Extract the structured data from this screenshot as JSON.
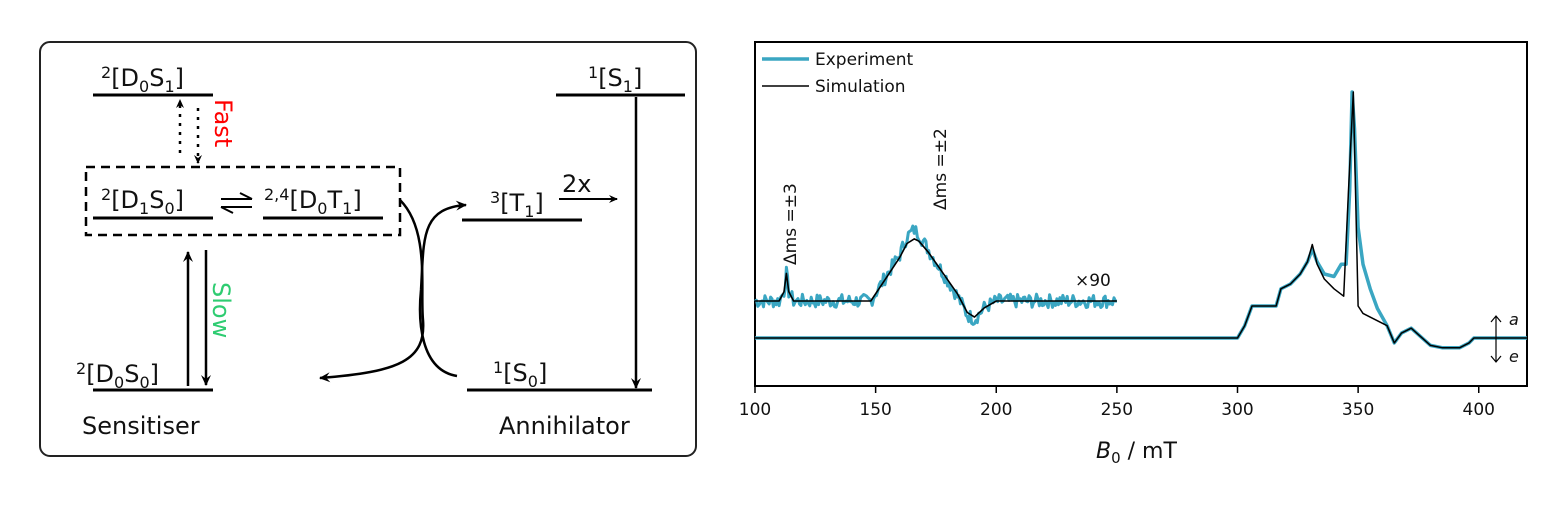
{
  "diagram": {
    "levels": {
      "d0s1": {
        "sup": "2",
        "main": "[D",
        "s1": "0",
        "m2": "S",
        "s2": "1",
        "end": "]"
      },
      "d1s0": {
        "sup": "2",
        "main": "[D",
        "s1": "1",
        "m2": "S",
        "s2": "0",
        "end": "]"
      },
      "d0t1": {
        "sup": "2,4",
        "main": "[D",
        "s1": "0",
        "m2": "T",
        "s2": "1",
        "end": "]"
      },
      "d0s0": {
        "sup": "2",
        "main": "[D",
        "s1": "0",
        "m2": "S",
        "s2": "0",
        "end": "]"
      },
      "s1": {
        "sup": "1",
        "main": "[S",
        "s1": "1",
        "end": "]"
      },
      "t1": {
        "sup": "3",
        "main": "[T",
        "s1": "1",
        "end": "]"
      },
      "s0": {
        "sup": "1",
        "main": "[S",
        "s1": "0",
        "end": "]"
      }
    },
    "fast_label": "Fast",
    "slow_label": "Slow",
    "two_x_label": "2x",
    "sensitiser_label": "Sensitiser",
    "annihilator_label": "Annihilator",
    "colors": {
      "fast": "#ff0000",
      "slow": "#2ecc71",
      "line": "#000000"
    }
  },
  "chart_data": {
    "type": "line",
    "title": "",
    "xlabel_main": "B",
    "xlabel_sub": "0",
    "xlabel_unit": " / mT",
    "ylabel": "",
    "xlim": [
      100,
      420
    ],
    "xticks": [
      100,
      150,
      200,
      250,
      300,
      350,
      400
    ],
    "xtick_labels": [
      "100",
      "150",
      "200",
      "250",
      "300",
      "350",
      "400"
    ],
    "grid": false,
    "legend": {
      "placement": "top-left",
      "entries": [
        "Experiment",
        "Simulation"
      ]
    },
    "colors": {
      "experiment": "#3aa6c2",
      "simulation": "#000000"
    },
    "series": [
      {
        "name": "Experiment",
        "x": [
          300,
          303,
          306,
          312,
          316,
          318,
          322,
          326,
          329,
          331,
          333,
          336,
          340,
          343,
          345,
          346.5,
          347.5,
          348.5,
          350,
          352,
          355,
          358,
          362,
          365,
          368,
          372,
          380,
          385,
          392,
          396,
          398,
          420
        ],
        "y": [
          0,
          0.05,
          0.13,
          0.13,
          0.13,
          0.2,
          0.22,
          0.26,
          0.31,
          0.36,
          0.31,
          0.26,
          0.25,
          0.3,
          0.3,
          0.6,
          1.0,
          0.85,
          0.45,
          0.3,
          0.2,
          0.12,
          0.05,
          -0.02,
          0.02,
          0.04,
          -0.03,
          -0.04,
          -0.04,
          -0.02,
          0,
          0
        ]
      },
      {
        "name": "Simulation",
        "x": [
          300,
          303,
          306,
          312,
          316,
          318,
          322,
          326,
          329,
          331,
          333,
          336,
          340,
          344,
          346,
          348,
          350,
          352,
          356,
          362,
          365,
          368,
          372,
          380,
          385,
          392,
          396,
          398,
          420
        ],
        "y": [
          0,
          0.05,
          0.13,
          0.13,
          0.13,
          0.2,
          0.22,
          0.26,
          0.31,
          0.38,
          0.3,
          0.24,
          0.2,
          0.17,
          0.6,
          1.0,
          0.13,
          0.1,
          0.08,
          0.05,
          -0.02,
          0.02,
          0.04,
          -0.03,
          -0.04,
          -0.04,
          -0.02,
          0,
          0
        ]
      }
    ],
    "inset": {
      "scale_label": "×90",
      "xrange": [
        100,
        250
      ],
      "series": [
        {
          "name": "Experiment (×90)",
          "x": [
            100,
            110,
            112,
            113,
            114,
            116,
            130,
            148,
            155,
            160,
            163,
            166,
            168,
            172,
            178,
            184,
            188,
            191,
            195,
            200,
            210,
            230,
            250
          ],
          "y": [
            0,
            0,
            0.04,
            0.12,
            0.04,
            0,
            0,
            0,
            0.12,
            0.2,
            0.28,
            0.31,
            0.29,
            0.22,
            0.12,
            0.02,
            -0.06,
            -0.08,
            -0.03,
            0,
            0,
            0,
            0
          ]
        },
        {
          "name": "Simulation (×90)",
          "x": [
            100,
            110,
            112,
            113,
            114,
            116,
            130,
            148,
            155,
            160,
            163,
            166,
            168,
            172,
            178,
            184,
            188,
            191,
            195,
            200,
            210,
            230,
            250
          ],
          "y": [
            0,
            0,
            0.04,
            0.12,
            0.04,
            0,
            0,
            0,
            0.11,
            0.19,
            0.25,
            0.27,
            0.26,
            0.21,
            0.12,
            0.03,
            -0.05,
            -0.07,
            -0.03,
            0,
            0,
            0,
            0
          ]
        }
      ]
    },
    "annotations": {
      "ms3": "Δms =±3",
      "ms2": "Δms =±2",
      "absorption": "a",
      "emission": "e"
    }
  }
}
